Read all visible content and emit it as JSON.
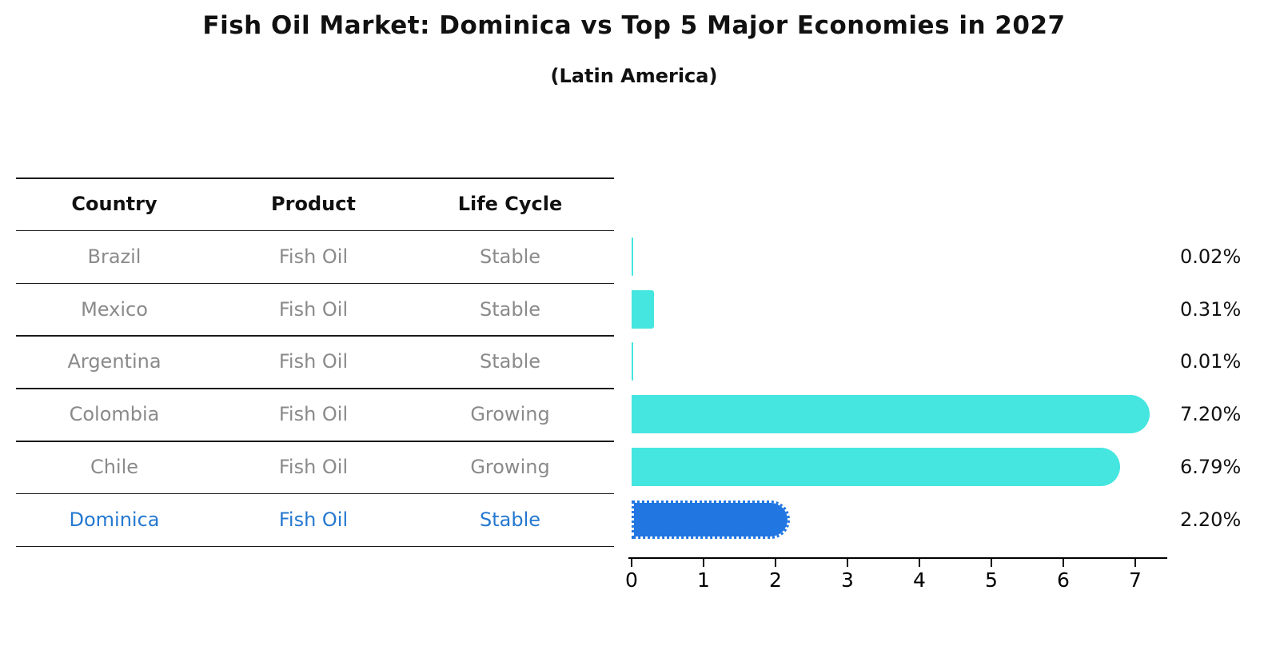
{
  "chart_data": {
    "type": "bar",
    "orientation": "horizontal",
    "title": "Fish Oil Market: Dominica vs Top 5 Major Economies in 2027",
    "subtitle": "(Latin America)",
    "categories": [
      "Brazil",
      "Mexico",
      "Argentina",
      "Colombia",
      "Chile",
      "Dominica"
    ],
    "values": [
      0.02,
      0.31,
      0.01,
      7.2,
      6.79,
      2.2
    ],
    "bar_labels": [
      "0.02%",
      "0.31%",
      "0.01%",
      "7.20%",
      "6.79%",
      "2.20%"
    ],
    "highlight_index": 5,
    "highlight_category": "Dominica",
    "xlabel": "",
    "ylabel": "",
    "xlim": [
      0,
      7.55
    ],
    "x_ticks": [
      "0",
      "1",
      "2",
      "3",
      "4",
      "5",
      "6",
      "7"
    ],
    "grid": false,
    "legend": null
  },
  "table": {
    "headers": [
      "Country",
      "Product",
      "Life Cycle"
    ],
    "rows": [
      {
        "country": "Brazil",
        "product": "Fish Oil",
        "life_cycle": "Stable",
        "highlight": false
      },
      {
        "country": "Mexico",
        "product": "Fish Oil",
        "life_cycle": "Stable",
        "highlight": false
      },
      {
        "country": "Argentina",
        "product": "Fish Oil",
        "life_cycle": "Stable",
        "highlight": false
      },
      {
        "country": "Colombia",
        "product": "Fish Oil",
        "life_cycle": "Growing",
        "highlight": false
      },
      {
        "country": "Chile",
        "product": "Fish Oil",
        "life_cycle": "Growing",
        "highlight": false
      },
      {
        "country": "Dominica",
        "product": "Fish Oil",
        "life_cycle": "Stable",
        "highlight": true
      }
    ]
  },
  "colors": {
    "bar": "#45E5E0",
    "highlight_bar": "#2176E2",
    "highlight_text": "#2478D0",
    "table_text": "#8A8A8A",
    "header_text": "#111111",
    "axis": "#000000",
    "value_label": "#111111"
  }
}
